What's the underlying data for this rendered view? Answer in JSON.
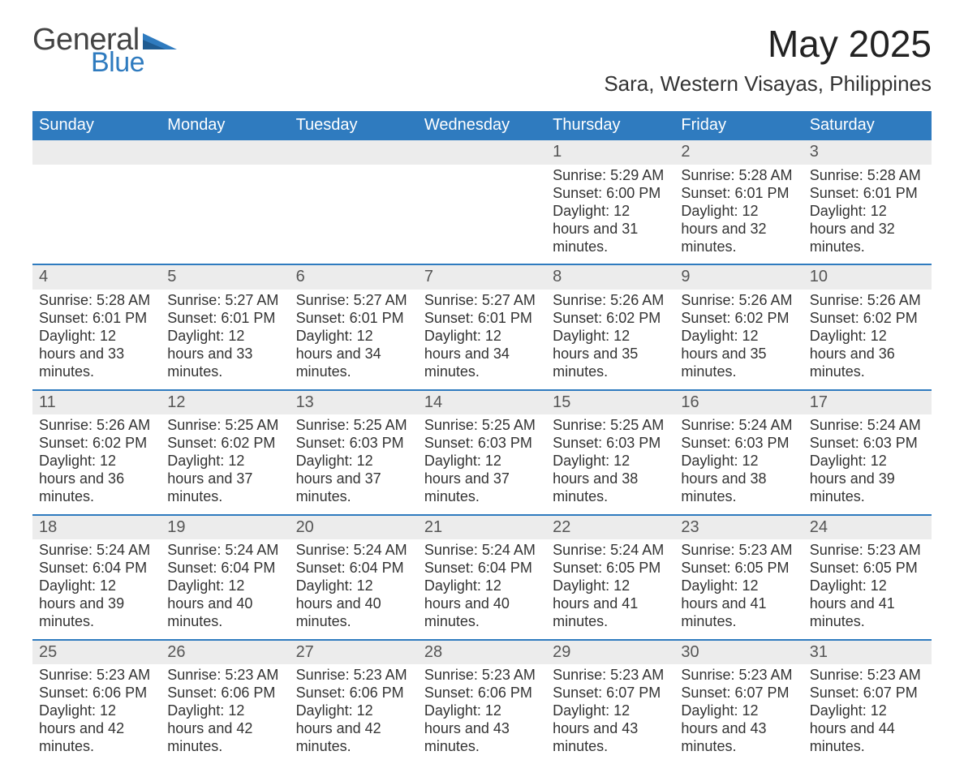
{
  "brand": {
    "word1": "General",
    "word2": "Blue",
    "tri_color": "#2f7bbf"
  },
  "title": "May 2025",
  "subtitle": "Sara, Western Visayas, Philippines",
  "colors": {
    "header_bg": "#2f7bbf",
    "header_text": "#ffffff",
    "daynum_bg": "#ececec",
    "daynum_text": "#555555",
    "cell_text": "#333333",
    "row_divider": "#2f7bbf",
    "page_bg": "#ffffff"
  },
  "day_headers": [
    "Sunday",
    "Monday",
    "Tuesday",
    "Wednesday",
    "Thursday",
    "Friday",
    "Saturday"
  ],
  "weeks": [
    [
      {
        "empty": true
      },
      {
        "empty": true
      },
      {
        "empty": true
      },
      {
        "empty": true
      },
      {
        "day": "1",
        "sunrise": "5:29 AM",
        "sunset": "6:00 PM",
        "daylight": "12 hours and 31 minutes."
      },
      {
        "day": "2",
        "sunrise": "5:28 AM",
        "sunset": "6:01 PM",
        "daylight": "12 hours and 32 minutes."
      },
      {
        "day": "3",
        "sunrise": "5:28 AM",
        "sunset": "6:01 PM",
        "daylight": "12 hours and 32 minutes."
      }
    ],
    [
      {
        "day": "4",
        "sunrise": "5:28 AM",
        "sunset": "6:01 PM",
        "daylight": "12 hours and 33 minutes."
      },
      {
        "day": "5",
        "sunrise": "5:27 AM",
        "sunset": "6:01 PM",
        "daylight": "12 hours and 33 minutes."
      },
      {
        "day": "6",
        "sunrise": "5:27 AM",
        "sunset": "6:01 PM",
        "daylight": "12 hours and 34 minutes."
      },
      {
        "day": "7",
        "sunrise": "5:27 AM",
        "sunset": "6:01 PM",
        "daylight": "12 hours and 34 minutes."
      },
      {
        "day": "8",
        "sunrise": "5:26 AM",
        "sunset": "6:02 PM",
        "daylight": "12 hours and 35 minutes."
      },
      {
        "day": "9",
        "sunrise": "5:26 AM",
        "sunset": "6:02 PM",
        "daylight": "12 hours and 35 minutes."
      },
      {
        "day": "10",
        "sunrise": "5:26 AM",
        "sunset": "6:02 PM",
        "daylight": "12 hours and 36 minutes."
      }
    ],
    [
      {
        "day": "11",
        "sunrise": "5:26 AM",
        "sunset": "6:02 PM",
        "daylight": "12 hours and 36 minutes."
      },
      {
        "day": "12",
        "sunrise": "5:25 AM",
        "sunset": "6:02 PM",
        "daylight": "12 hours and 37 minutes."
      },
      {
        "day": "13",
        "sunrise": "5:25 AM",
        "sunset": "6:03 PM",
        "daylight": "12 hours and 37 minutes."
      },
      {
        "day": "14",
        "sunrise": "5:25 AM",
        "sunset": "6:03 PM",
        "daylight": "12 hours and 37 minutes."
      },
      {
        "day": "15",
        "sunrise": "5:25 AM",
        "sunset": "6:03 PM",
        "daylight": "12 hours and 38 minutes."
      },
      {
        "day": "16",
        "sunrise": "5:24 AM",
        "sunset": "6:03 PM",
        "daylight": "12 hours and 38 minutes."
      },
      {
        "day": "17",
        "sunrise": "5:24 AM",
        "sunset": "6:03 PM",
        "daylight": "12 hours and 39 minutes."
      }
    ],
    [
      {
        "day": "18",
        "sunrise": "5:24 AM",
        "sunset": "6:04 PM",
        "daylight": "12 hours and 39 minutes."
      },
      {
        "day": "19",
        "sunrise": "5:24 AM",
        "sunset": "6:04 PM",
        "daylight": "12 hours and 40 minutes."
      },
      {
        "day": "20",
        "sunrise": "5:24 AM",
        "sunset": "6:04 PM",
        "daylight": "12 hours and 40 minutes."
      },
      {
        "day": "21",
        "sunrise": "5:24 AM",
        "sunset": "6:04 PM",
        "daylight": "12 hours and 40 minutes."
      },
      {
        "day": "22",
        "sunrise": "5:24 AM",
        "sunset": "6:05 PM",
        "daylight": "12 hours and 41 minutes."
      },
      {
        "day": "23",
        "sunrise": "5:23 AM",
        "sunset": "6:05 PM",
        "daylight": "12 hours and 41 minutes."
      },
      {
        "day": "24",
        "sunrise": "5:23 AM",
        "sunset": "6:05 PM",
        "daylight": "12 hours and 41 minutes."
      }
    ],
    [
      {
        "day": "25",
        "sunrise": "5:23 AM",
        "sunset": "6:06 PM",
        "daylight": "12 hours and 42 minutes."
      },
      {
        "day": "26",
        "sunrise": "5:23 AM",
        "sunset": "6:06 PM",
        "daylight": "12 hours and 42 minutes."
      },
      {
        "day": "27",
        "sunrise": "5:23 AM",
        "sunset": "6:06 PM",
        "daylight": "12 hours and 42 minutes."
      },
      {
        "day": "28",
        "sunrise": "5:23 AM",
        "sunset": "6:06 PM",
        "daylight": "12 hours and 43 minutes."
      },
      {
        "day": "29",
        "sunrise": "5:23 AM",
        "sunset": "6:07 PM",
        "daylight": "12 hours and 43 minutes."
      },
      {
        "day": "30",
        "sunrise": "5:23 AM",
        "sunset": "6:07 PM",
        "daylight": "12 hours and 43 minutes."
      },
      {
        "day": "31",
        "sunrise": "5:23 AM",
        "sunset": "6:07 PM",
        "daylight": "12 hours and 44 minutes."
      }
    ]
  ],
  "labels": {
    "sunrise": "Sunrise: ",
    "sunset": "Sunset: ",
    "daylight": "Daylight: "
  }
}
